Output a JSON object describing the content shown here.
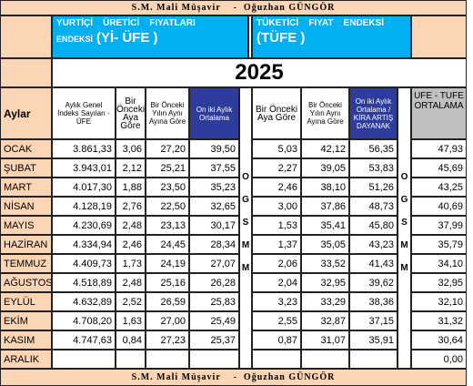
{
  "banner": "S.M. Mali Müşavir    -  Oğuzhan GÜNGÖR",
  "ufe_title": {
    "line1": "YURTİÇİ    ÜRETİCİ    FIYATLARI",
    "line2_small": "ENDEKSİ",
    "line2_large": "(Yİ- ÜFE )"
  },
  "tufe_title": {
    "line1": "TÜKETİCİ    FIYAT    ENDEKSİ",
    "line2_large": "(TÜFE )"
  },
  "year": "2025",
  "columns": [
    "Aylar",
    "Aylık Genel İndeks Sayıları - ÜFE",
    "Bir Önceki Aya Göre",
    "Bir Önceki Yılın Aynı Ayına Göre",
    "On iki Aylık Ortalama",
    "Bir Önceki Aya Göre",
    "Bir Önceki Yılın Aynı Ayına Göre",
    "On iki Aylık Ortalama / KİRA ARTIŞ DAYANAK",
    "UFE - TUFE ORTALAMA"
  ],
  "side_letters": [
    "O",
    "G",
    "S",
    "M",
    "M"
  ],
  "rows": [
    [
      "OCAK",
      "3.861,33",
      "3,06",
      "27,20",
      "39,50",
      "5,03",
      "42,12",
      "56,35",
      "47,93"
    ],
    [
      "ŞUBAT",
      "3.943,01",
      "2,12",
      "25,21",
      "37,55",
      "2,27",
      "39,05",
      "53,83",
      "45,69"
    ],
    [
      "MART",
      "4.017,30",
      "1,88",
      "23,50",
      "35,23",
      "2,46",
      "38,10",
      "51,26",
      "43,25"
    ],
    [
      "NİSAN",
      "4.128,19",
      "2,76",
      "22,50",
      "32,65",
      "3,00",
      "37,86",
      "48,73",
      "40,69"
    ],
    [
      "MAYIS",
      "4.230,69",
      "2,48",
      "23,13",
      "30,17",
      "1,53",
      "35,41",
      "45,80",
      "37,99"
    ],
    [
      "HAZİRAN",
      "4.334,94",
      "2,46",
      "24,45",
      "28,34",
      "1,37",
      "35,05",
      "43,23",
      "35,79"
    ],
    [
      "TEMMUZ",
      "4.409,73",
      "1,73",
      "24,19",
      "27,07",
      "2,06",
      "33,52",
      "41,43",
      "34,10"
    ],
    [
      "AĞUSTOS",
      "4.518,89",
      "2,48",
      "25,16",
      "26,28",
      "2,04",
      "32,95",
      "39,62",
      "32,95"
    ],
    [
      "EYLÜL",
      "4.632,89",
      "2,52",
      "26,59",
      "25,83",
      "3,23",
      "33,29",
      "38,36",
      "32,10"
    ],
    [
      "EKİM",
      "4.708,20",
      "1,63",
      "27,00",
      "25,49",
      "2,55",
      "32,87",
      "37,15",
      "31,32"
    ],
    [
      "KASIM",
      "4.747,63",
      "0,84",
      "27,23",
      "25,37",
      "0,87",
      "31,07",
      "35,91",
      "30,64"
    ],
    [
      "ARALIK",
      null,
      null,
      null,
      null,
      null,
      null,
      null,
      "0,00"
    ]
  ],
  "footer": "S.M. Mali Müşavir    -  Oğuzhan GÜNGÖR"
}
